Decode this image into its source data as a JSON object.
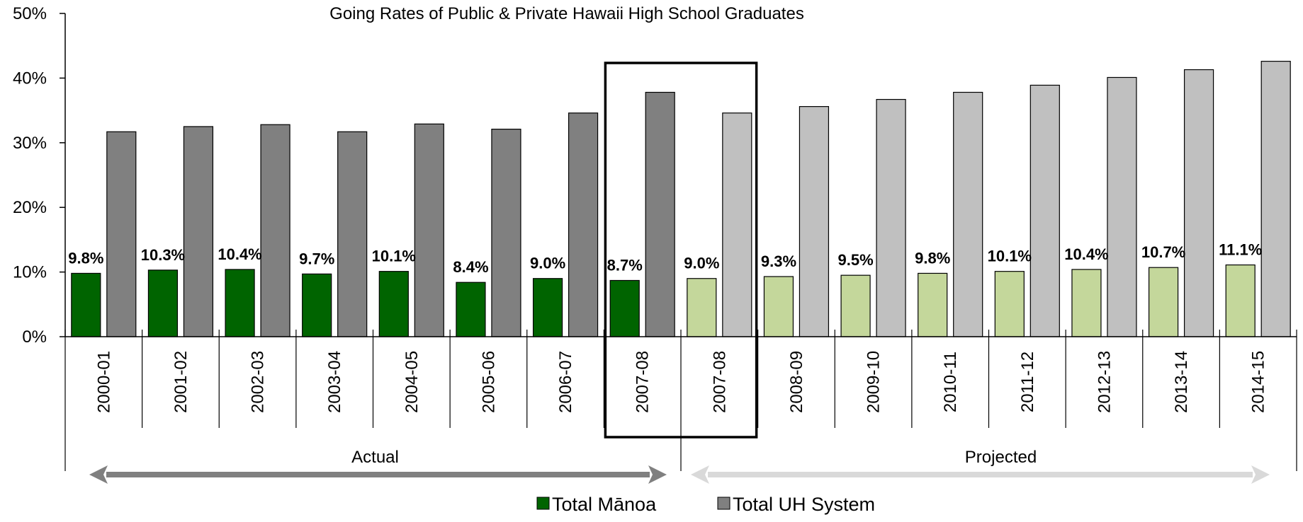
{
  "chart_data": {
    "type": "bar",
    "title": "Going Rates of Public & Private Hawaii High School Graduates",
    "xlabel": "",
    "ylabel": "",
    "ylim": [
      0,
      50
    ],
    "yticks": [
      0,
      10,
      20,
      30,
      40,
      50
    ],
    "ytick_labels": [
      "0%",
      "10%",
      "20%",
      "30%",
      "40%",
      "50%"
    ],
    "categories": [
      "2000-01",
      "2001-02",
      "2002-03",
      "2003-04",
      "2004-05",
      "2005-06",
      "2006-07",
      "2007-08",
      "2007-08",
      "2008-09",
      "2009-10",
      "2010-11",
      "2011-12",
      "2012-13",
      "2013-14",
      "2014-15"
    ],
    "series": [
      {
        "name": "Total Mānoa",
        "values": [
          9.8,
          10.3,
          10.4,
          9.7,
          10.1,
          8.4,
          9.0,
          8.7,
          9.0,
          9.3,
          9.5,
          9.8,
          10.1,
          10.4,
          10.7,
          11.1
        ],
        "data_labels": [
          "9.8%",
          "10.3%",
          "10.4%",
          "9.7%",
          "10.1%",
          "8.4%",
          "9.0%",
          "8.7%",
          "9.0%",
          "9.3%",
          "9.5%",
          "9.8%",
          "10.1%",
          "10.4%",
          "10.7%",
          "11.1%"
        ],
        "color_actual": "#006400",
        "color_projected": "#c4d79b"
      },
      {
        "name": "Total UH System",
        "values": [
          31.7,
          32.5,
          32.8,
          31.7,
          32.9,
          32.1,
          34.6,
          37.8,
          34.6,
          35.6,
          36.7,
          37.8,
          38.9,
          40.1,
          41.3,
          42.6
        ],
        "color_actual": "#808080",
        "color_projected": "#c0c0c0"
      }
    ],
    "actual_count": 8,
    "highlighted_categories": [
      7,
      8
    ],
    "periods": [
      {
        "label": "Actual",
        "color": "#808080"
      },
      {
        "label": "Projected",
        "color": "#d9d9d9"
      }
    ],
    "grid": false,
    "legend": "bottom"
  }
}
